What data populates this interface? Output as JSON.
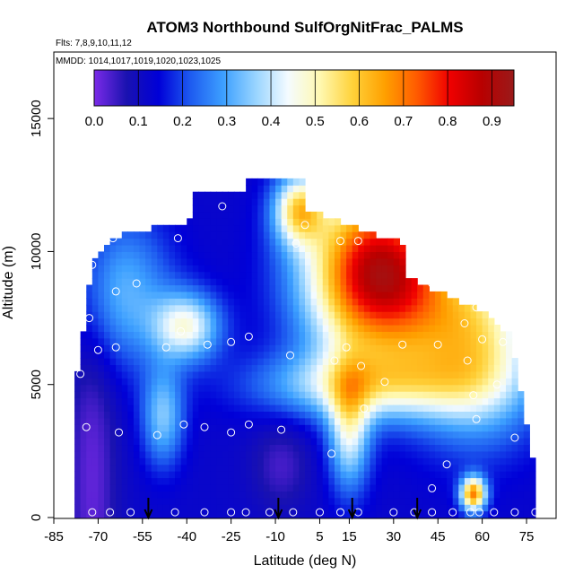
{
  "chart_data": {
    "type": "heatmap",
    "title": "ATOM3 Northbound SulfOrgNitFrac_PALMS",
    "subtitle_1": "Flts: 7,8,9,10,11,12",
    "subtitle_2": "MMDD: 1014,1017,1019,1020,1023,1025",
    "xlabel": "Latitude (deg N)",
    "ylabel": "Altitude (m)",
    "xlim": [
      -85,
      85
    ],
    "ylim": [
      0,
      17500
    ],
    "x_ticks": [
      -85,
      -70,
      -55,
      -40,
      -25,
      -10,
      5,
      15,
      30,
      45,
      60,
      75
    ],
    "x_tick_labels": [
      "-85",
      "-70",
      "-55",
      "-40",
      "-25",
      "-10",
      "5",
      "15",
      "30",
      "45",
      "60",
      "75"
    ],
    "y_ticks": [
      0,
      5000,
      10000,
      15000
    ],
    "y_tick_labels": [
      "0",
      "5000",
      "10000",
      "15000"
    ],
    "colorbar": {
      "range": [
        0,
        0.95
      ],
      "ticks": [
        0.0,
        0.1,
        0.2,
        0.3,
        0.4,
        0.5,
        0.6,
        0.7,
        0.8,
        0.9
      ],
      "tick_labels": [
        "0.0",
        "0.1",
        "0.2",
        "0.3",
        "0.4",
        "0.5",
        "0.6",
        "0.7",
        "0.8",
        "0.9"
      ],
      "colors": [
        "#7b2be8",
        "#1a12b0",
        "#0000d8",
        "#1e5cf0",
        "#3da0ff",
        "#98d4ff",
        "#f4fbff",
        "#fff8b0",
        "#ffd23a",
        "#ffa000",
        "#ff5a00",
        "#f00000",
        "#b80000",
        "#9a1a1a"
      ]
    },
    "observation_points": [
      {
        "lat": -76,
        "alt": 5400
      },
      {
        "lat": -74,
        "alt": 3400
      },
      {
        "lat": -73,
        "alt": 7500
      },
      {
        "lat": -72,
        "alt": 9500
      },
      {
        "lat": -70,
        "alt": 6300
      },
      {
        "lat": -65,
        "alt": 10500
      },
      {
        "lat": -64,
        "alt": 8500
      },
      {
        "lat": -64,
        "alt": 6400
      },
      {
        "lat": -63,
        "alt": 3200
      },
      {
        "lat": -57,
        "alt": 8800
      },
      {
        "lat": -50,
        "alt": 3100
      },
      {
        "lat": -47,
        "alt": 6400
      },
      {
        "lat": -43,
        "alt": 10500
      },
      {
        "lat": -42,
        "alt": 7000
      },
      {
        "lat": -41,
        "alt": 3500
      },
      {
        "lat": -34,
        "alt": 3400
      },
      {
        "lat": -33,
        "alt": 6500
      },
      {
        "lat": -28,
        "alt": 11700
      },
      {
        "lat": -25,
        "alt": 6600
      },
      {
        "lat": -25,
        "alt": 3200
      },
      {
        "lat": -19,
        "alt": 6800
      },
      {
        "lat": -19,
        "alt": 3500
      },
      {
        "lat": -8,
        "alt": 3300
      },
      {
        "lat": -5,
        "alt": 6100
      },
      {
        "lat": 0,
        "alt": 11000
      },
      {
        "lat": -3,
        "alt": 10300
      },
      {
        "lat": 9,
        "alt": 2400
      },
      {
        "lat": 10,
        "alt": 5900
      },
      {
        "lat": 12,
        "alt": 10400
      },
      {
        "lat": 14,
        "alt": 6400
      },
      {
        "lat": 18,
        "alt": 10400
      },
      {
        "lat": 19,
        "alt": 5700
      },
      {
        "lat": 20,
        "alt": 4100
      },
      {
        "lat": 27,
        "alt": 5100
      },
      {
        "lat": 33,
        "alt": 6500
      },
      {
        "lat": 43,
        "alt": 8800
      },
      {
        "lat": 45,
        "alt": 6500
      },
      {
        "lat": 48,
        "alt": 2000
      },
      {
        "lat": 43,
        "alt": 1100
      },
      {
        "lat": 54,
        "alt": 7300
      },
      {
        "lat": 55,
        "alt": 5900
      },
      {
        "lat": 57,
        "alt": 4600
      },
      {
        "lat": 58,
        "alt": 7900
      },
      {
        "lat": 58,
        "alt": 3700
      },
      {
        "lat": 60,
        "alt": 6700
      },
      {
        "lat": 65,
        "alt": 5000
      },
      {
        "lat": 67,
        "alt": 6600
      },
      {
        "lat": 71,
        "alt": 3000
      },
      {
        "lat": 73,
        "alt": 6700
      },
      {
        "lat": 56,
        "alt": 200
      },
      {
        "lat": -72,
        "alt": 200
      },
      {
        "lat": -66,
        "alt": 200
      },
      {
        "lat": -59,
        "alt": 200
      },
      {
        "lat": -44,
        "alt": 200
      },
      {
        "lat": -34,
        "alt": 200
      },
      {
        "lat": -25,
        "alt": 200
      },
      {
        "lat": -20,
        "alt": 200
      },
      {
        "lat": -12,
        "alt": 200
      },
      {
        "lat": -4,
        "alt": 200
      },
      {
        "lat": 5,
        "alt": 200
      },
      {
        "lat": 12,
        "alt": 200
      },
      {
        "lat": 18,
        "alt": 200
      },
      {
        "lat": 30,
        "alt": 200
      },
      {
        "lat": 37,
        "alt": 200
      },
      {
        "lat": 43,
        "alt": 200
      },
      {
        "lat": 50,
        "alt": 200
      },
      {
        "lat": 59,
        "alt": 200
      },
      {
        "lat": 64,
        "alt": 200
      },
      {
        "lat": 71,
        "alt": 200
      },
      {
        "lat": 78,
        "alt": 200
      }
    ],
    "arrow_markers_lat": [
      -53,
      -9,
      16,
      38
    ]
  }
}
